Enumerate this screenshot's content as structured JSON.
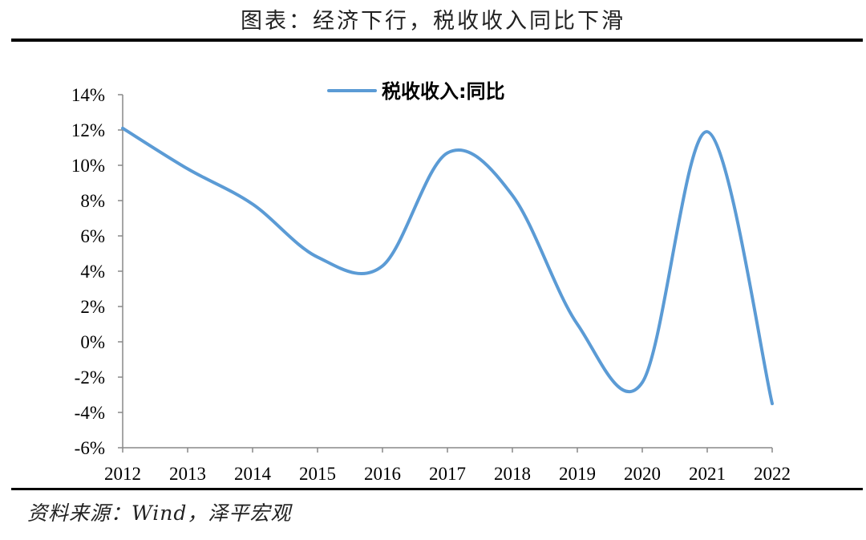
{
  "header": {
    "title": "图表：经济下行，税收收入同比下滑"
  },
  "footer": {
    "source": "资料来源：Wind，泽平宏观"
  },
  "chart_data": {
    "type": "line",
    "title": "",
    "xlabel": "",
    "ylabel": "",
    "categories": [
      "2012",
      "2013",
      "2014",
      "2015",
      "2016",
      "2017",
      "2018",
      "2019",
      "2020",
      "2021",
      "2022"
    ],
    "y_ticks": [
      "14%",
      "12%",
      "10%",
      "8%",
      "6%",
      "4%",
      "2%",
      "0%",
      "-2%",
      "-4%",
      "-6%"
    ],
    "ylim": [
      -6,
      14
    ],
    "grid": false,
    "legend_position": "top-center",
    "series": [
      {
        "name": "税收收入:同比",
        "color": "#5B9BD5",
        "values": [
          12.1,
          9.8,
          7.8,
          4.8,
          4.3,
          10.7,
          8.3,
          1.0,
          -2.3,
          11.9,
          -3.5
        ]
      }
    ]
  }
}
